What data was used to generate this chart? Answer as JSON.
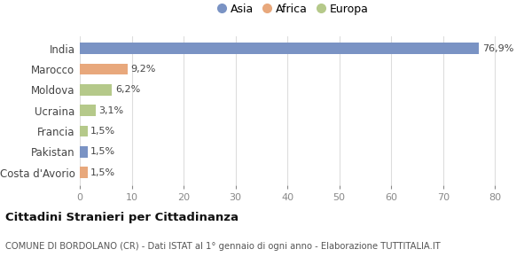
{
  "categories": [
    "India",
    "Marocco",
    "Moldova",
    "Ucraina",
    "Francia",
    "Pakistan",
    "Costa d'Avorio"
  ],
  "values": [
    76.9,
    9.2,
    6.2,
    3.1,
    1.5,
    1.5,
    1.5
  ],
  "labels": [
    "76,9%",
    "9,2%",
    "6,2%",
    "3,1%",
    "1,5%",
    "1,5%",
    "1,5%"
  ],
  "colors": [
    "#7a93c4",
    "#e8a87c",
    "#b5c98a",
    "#b5c98a",
    "#b5c98a",
    "#7a93c4",
    "#e8a87c"
  ],
  "legend_labels": [
    "Asia",
    "Africa",
    "Europa"
  ],
  "legend_colors": [
    "#7a93c4",
    "#e8a87c",
    "#b5c98a"
  ],
  "xlim": [
    0,
    82
  ],
  "xticks": [
    0,
    10,
    20,
    30,
    40,
    50,
    60,
    70,
    80
  ],
  "title_main": "Cittadini Stranieri per Cittadinanza",
  "title_sub": "COMUNE DI BORDOLANO (CR) - Dati ISTAT al 1° gennaio di ogni anno - Elaborazione TUTTITALIA.IT",
  "background_color": "#ffffff",
  "plot_bg_color": "#ffffff",
  "grid_color": "#dddddd",
  "bar_height": 0.55,
  "label_fontsize": 8,
  "ytick_fontsize": 8.5,
  "xtick_fontsize": 8
}
